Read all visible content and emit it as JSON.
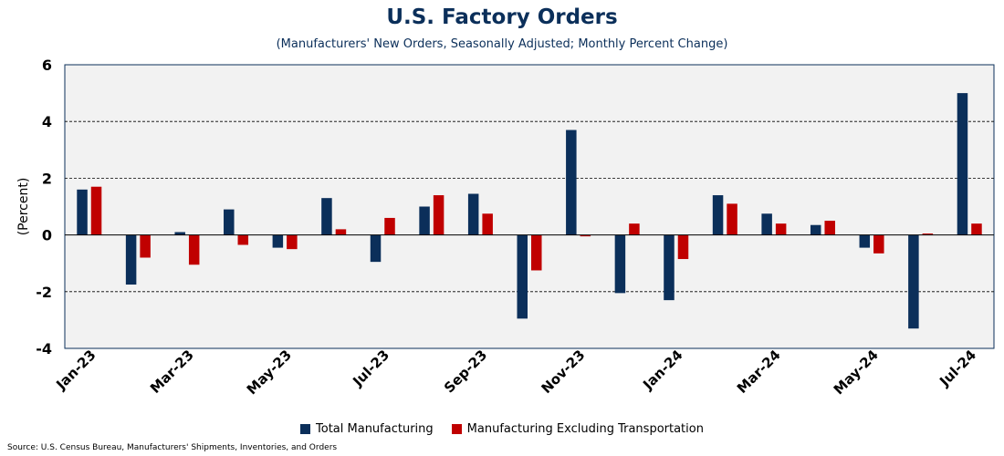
{
  "colors": {
    "total": "#0b2f5a",
    "ex_transport": "#c00000",
    "plot_bg": "#f2f2f2",
    "title": "#0b2f5a"
  },
  "chart_data": {
    "type": "bar",
    "title": "U.S. Factory Orders",
    "subtitle": "(Manufacturers' New Orders, Seasonally Adjusted; Monthly Percent Change)",
    "ylabel": "(Percent)",
    "xlabel": "",
    "ylim": [
      -4,
      6
    ],
    "yticks": [
      6,
      4,
      2,
      0,
      -2,
      -4
    ],
    "ytick_labels": [
      "6",
      "4",
      "2",
      "0",
      "-2",
      "-4"
    ],
    "grid": "dashed horizontal at 4, 2, -2",
    "legend_position": "bottom",
    "categories": [
      "Jan-23",
      "Feb-23",
      "Mar-23",
      "Apr-23",
      "May-23",
      "Jun-23",
      "Jul-23",
      "Aug-23",
      "Sep-23",
      "Oct-23",
      "Nov-23",
      "Dec-23",
      "Jan-24",
      "Feb-24",
      "Mar-24",
      "Apr-24",
      "May-24",
      "Jun-24",
      "Jul-24"
    ],
    "xtick_labels": [
      "Jan-23",
      "Mar-23",
      "May-23",
      "Jul-23",
      "Sep-23",
      "Nov-23",
      "Jan-24",
      "Mar-24",
      "May-24",
      "Jul-24"
    ],
    "series": [
      {
        "name": "Total Manufacturing",
        "values": [
          1.6,
          -1.75,
          0.1,
          0.9,
          -0.45,
          1.3,
          -0.95,
          1.0,
          1.45,
          -2.95,
          3.7,
          -2.05,
          -2.3,
          1.4,
          0.75,
          0.35,
          -0.45,
          -3.3,
          5.0
        ]
      },
      {
        "name": "Manufacturing Excluding Transportation",
        "values": [
          1.7,
          -0.8,
          -1.05,
          -0.35,
          -0.5,
          0.2,
          0.6,
          1.4,
          0.75,
          -1.25,
          -0.05,
          0.4,
          -0.85,
          1.1,
          0.4,
          0.5,
          -0.65,
          0.05,
          0.4
        ]
      }
    ]
  },
  "source": "Source: U.S. Census Bureau, Manufacturers' Shipments, Inventories, and Orders"
}
